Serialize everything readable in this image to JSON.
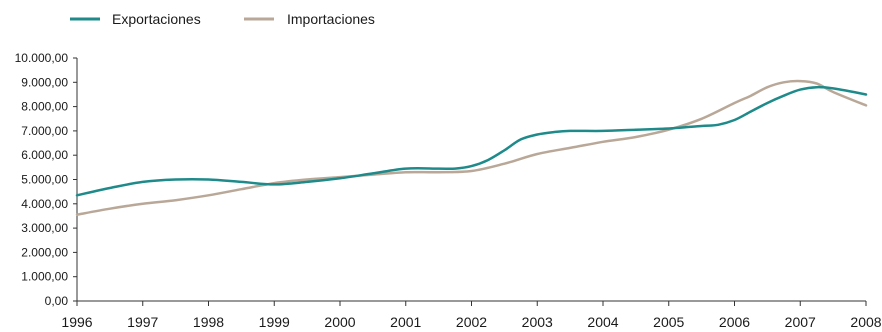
{
  "chart_data": {
    "type": "line",
    "title": "",
    "xlabel": "",
    "ylabel": "",
    "ylim": [
      0,
      10000
    ],
    "xlim": [
      1996,
      2008
    ],
    "grid": false,
    "legend_position": "top-left",
    "y_ticks": [
      "0,00",
      "1.000,00",
      "2.000,00",
      "3.000,00",
      "4.000,00",
      "5.000,00",
      "6.000,00",
      "7.000,00",
      "8.000,00",
      "9.000,00",
      "10.000,00"
    ],
    "x_ticks": [
      "1996",
      "1997",
      "1998",
      "1999",
      "2000",
      "2001",
      "2002",
      "2003",
      "2004",
      "2005",
      "2006",
      "2007",
      "2008"
    ],
    "series": [
      {
        "name": "Exportaciones",
        "color": "#1f8a8a",
        "x": [
          1996,
          1996.5,
          1997,
          1997.5,
          1998,
          1998.5,
          1999,
          1999.5,
          2000,
          2000.5,
          2001,
          2001.5,
          2001.75,
          2002,
          2002.25,
          2002.5,
          2002.75,
          2003,
          2003.25,
          2003.5,
          2004,
          2004.5,
          2005,
          2005.5,
          2005.75,
          2006,
          2006.25,
          2006.5,
          2006.75,
          2007,
          2007.25,
          2007.5,
          2008
        ],
        "values": [
          4350,
          4650,
          4900,
          5000,
          5000,
          4900,
          4800,
          4900,
          5050,
          5250,
          5450,
          5450,
          5450,
          5550,
          5800,
          6200,
          6650,
          6850,
          6950,
          7000,
          7000,
          7050,
          7100,
          7200,
          7250,
          7450,
          7800,
          8150,
          8450,
          8700,
          8800,
          8750,
          8500
        ]
      },
      {
        "name": "Importaciones",
        "color": "#b9a898",
        "x": [
          1996,
          1996.5,
          1997,
          1997.5,
          1998,
          1998.5,
          1999,
          1999.5,
          2000,
          2000.5,
          2001,
          2001.5,
          2002,
          2002.5,
          2003,
          2003.5,
          2004,
          2004.5,
          2005,
          2005.5,
          2006,
          2006.25,
          2006.5,
          2006.75,
          2007,
          2007.25,
          2007.5,
          2008
        ],
        "values": [
          3550,
          3800,
          4000,
          4150,
          4350,
          4600,
          4850,
          5000,
          5100,
          5200,
          5300,
          5300,
          5350,
          5650,
          6050,
          6300,
          6550,
          6750,
          7050,
          7500,
          8150,
          8450,
          8800,
          9000,
          9050,
          8950,
          8600,
          8050
        ]
      }
    ]
  }
}
